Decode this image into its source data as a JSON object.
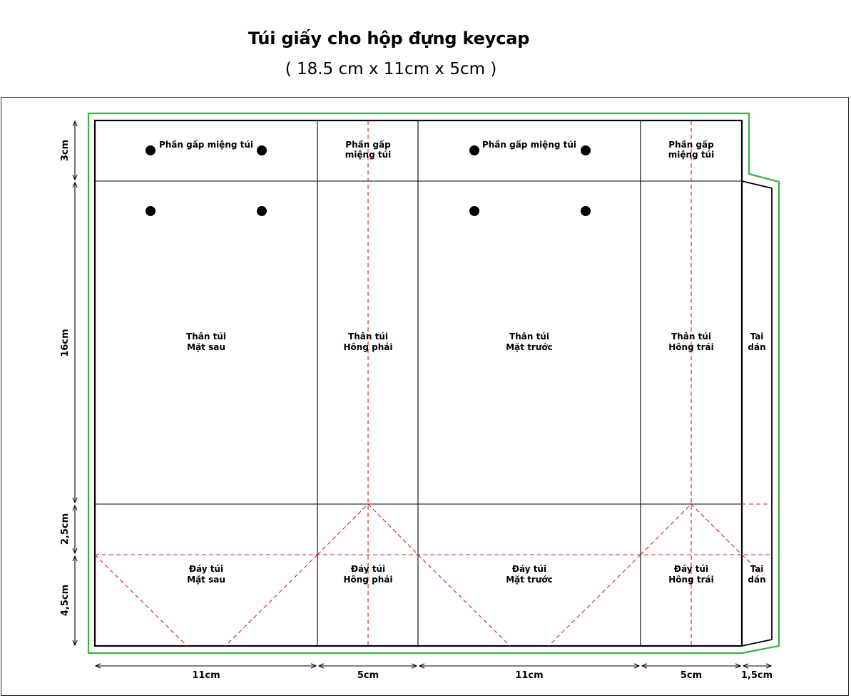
{
  "title": "Túi giấy cho hộp đựng keycap",
  "subtitle": "( 18.5 cm x 11cm x 5cm )",
  "colors": {
    "outline": "#000000",
    "bleed": "#3cb043",
    "fold": "#d62020"
  },
  "panels": {
    "flap_back": "Phần gấp miệng túi",
    "flap_right_1": "Phần gấp",
    "flap_right_2": "miệng túi",
    "flap_front": "Phần gấp miệng túi",
    "flap_left_1": "Phần gấp",
    "flap_left_2": "miệng túi",
    "body_back_1": "Thân túi",
    "body_back_2": "Mặt sau",
    "body_right_1": "Thân túi",
    "body_right_2": "Hông phải",
    "body_front_1": "Thân túi",
    "body_front_2": "Mặt trước",
    "body_left_1": "Thân túi",
    "body_left_2": "Hông trái",
    "tab_1": "Tai",
    "tab_2": "dán",
    "bottom_back_1": "Đáy túi",
    "bottom_back_2": "Mặt sau",
    "bottom_right_1": "Đáy túi",
    "bottom_right_2": "Hông phải",
    "bottom_front_1": "Đáy túi",
    "bottom_front_2": "Mặt trước",
    "bottom_left_1": "Đáy túi",
    "bottom_left_2": "Hông trái",
    "bottom_tab_1": "Tai",
    "bottom_tab_2": "dán"
  },
  "dimensions": {
    "height_flap": "3cm",
    "height_body": "16cm",
    "height_bottom_upper": "2,5cm",
    "height_bottom_lower": "4,5cm",
    "width_back": "11cm",
    "width_right": "5cm",
    "width_front": "11cm",
    "width_left": "5cm",
    "width_tab": "1,5cm"
  }
}
